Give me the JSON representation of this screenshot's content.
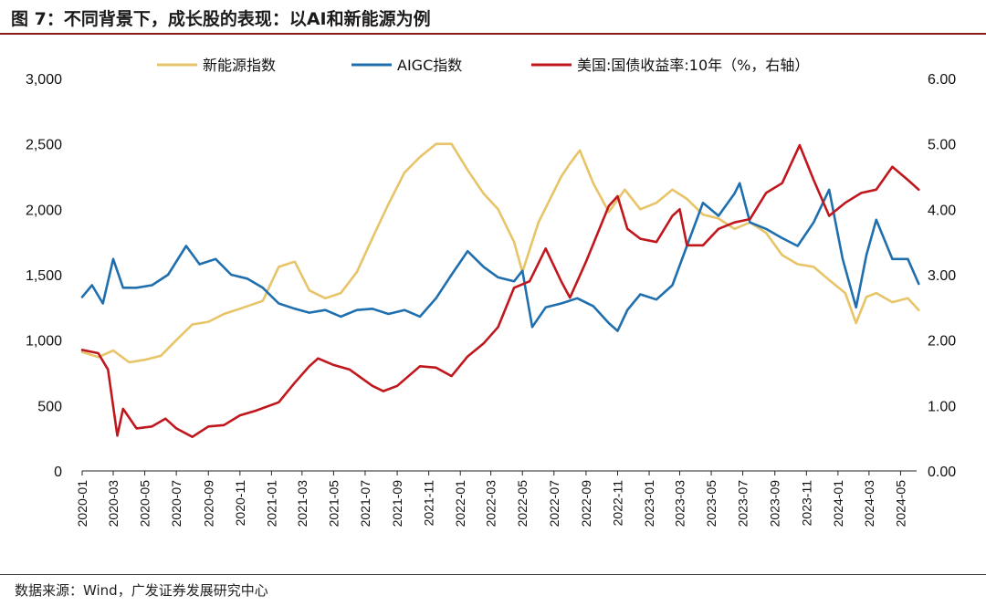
{
  "header": {
    "title": "图 7：不同背景下，成长股的表现：以AI和新能源为例"
  },
  "footer": {
    "source": "数据来源：Wind，广发证券发展研究中心"
  },
  "chart_data": {
    "type": "line",
    "x_labels": [
      "2020-01",
      "2020-03",
      "2020-05",
      "2020-07",
      "2020-09",
      "2020-11",
      "2021-01",
      "2021-03",
      "2021-05",
      "2021-07",
      "2021-09",
      "2021-11",
      "2022-01",
      "2022-03",
      "2022-05",
      "2022-07",
      "2022-09",
      "2022-11",
      "2023-01",
      "2023-03",
      "2023-05",
      "2023-07",
      "2023-09",
      "2023-11",
      "2024-01",
      "2024-03",
      "2024-05"
    ],
    "x_range": [
      "2020-01",
      "2024-06"
    ],
    "y_left": {
      "min": 0,
      "max": 3000,
      "ticks": [
        "0",
        "500",
        "1,000",
        "1,500",
        "2,000",
        "2,500",
        "3,000"
      ]
    },
    "y_right": {
      "min": 0,
      "max": 6,
      "ticks": [
        "0.00",
        "1.00",
        "2.00",
        "3.00",
        "4.00",
        "5.00",
        "6.00"
      ]
    },
    "legend_position": "top",
    "grid": false,
    "series": [
      {
        "name": "新能源指数",
        "axis": "left",
        "color": "#E8C468",
        "points": [
          [
            "2020-01-01",
            910
          ],
          [
            "2020-02-01",
            870
          ],
          [
            "2020-03-01",
            920
          ],
          [
            "2020-04-01",
            830
          ],
          [
            "2020-05-01",
            850
          ],
          [
            "2020-06-01",
            880
          ],
          [
            "2020-07-01",
            1000
          ],
          [
            "2020-08-01",
            1120
          ],
          [
            "2020-09-01",
            1140
          ],
          [
            "2020-10-01",
            1200
          ],
          [
            "2020-11-01",
            1240
          ],
          [
            "2020-12-15",
            1300
          ],
          [
            "2021-01-15",
            1560
          ],
          [
            "2021-02-15",
            1600
          ],
          [
            "2021-03-15",
            1380
          ],
          [
            "2021-04-15",
            1320
          ],
          [
            "2021-05-15",
            1360
          ],
          [
            "2021-06-15",
            1520
          ],
          [
            "2021-07-15",
            1780
          ],
          [
            "2021-08-15",
            2040
          ],
          [
            "2021-09-15",
            2280
          ],
          [
            "2021-10-15",
            2400
          ],
          [
            "2021-11-15",
            2500
          ],
          [
            "2021-12-15",
            2500
          ],
          [
            "2022-01-15",
            2300
          ],
          [
            "2022-02-15",
            2120
          ],
          [
            "2022-03-15",
            2000
          ],
          [
            "2022-04-15",
            1750
          ],
          [
            "2022-05-01",
            1520
          ],
          [
            "2022-06-01",
            1900
          ],
          [
            "2022-07-15",
            2250
          ],
          [
            "2022-08-01",
            2350
          ],
          [
            "2022-08-20",
            2450
          ],
          [
            "2022-09-15",
            2200
          ],
          [
            "2022-10-15",
            1980
          ],
          [
            "2022-11-15",
            2150
          ],
          [
            "2022-12-15",
            2000
          ],
          [
            "2023-01-15",
            2050
          ],
          [
            "2023-02-15",
            2150
          ],
          [
            "2023-03-15",
            2080
          ],
          [
            "2023-04-15",
            1960
          ],
          [
            "2023-05-15",
            1930
          ],
          [
            "2023-06-15",
            1850
          ],
          [
            "2023-07-15",
            1900
          ],
          [
            "2023-08-15",
            1820
          ],
          [
            "2023-09-15",
            1650
          ],
          [
            "2023-10-15",
            1580
          ],
          [
            "2023-11-15",
            1560
          ],
          [
            "2023-12-15",
            1460
          ],
          [
            "2024-01-15",
            1360
          ],
          [
            "2024-02-05",
            1130
          ],
          [
            "2024-02-25",
            1330
          ],
          [
            "2024-03-15",
            1360
          ],
          [
            "2024-04-15",
            1290
          ],
          [
            "2024-05-15",
            1320
          ],
          [
            "2024-06-05",
            1230
          ]
        ]
      },
      {
        "name": "AIGC指数",
        "axis": "left",
        "color": "#1F6FAE",
        "points": [
          [
            "2020-01-01",
            1330
          ],
          [
            "2020-01-20",
            1420
          ],
          [
            "2020-02-10",
            1280
          ],
          [
            "2020-03-01",
            1620
          ],
          [
            "2020-03-20",
            1400
          ],
          [
            "2020-04-15",
            1400
          ],
          [
            "2020-05-15",
            1420
          ],
          [
            "2020-06-15",
            1500
          ],
          [
            "2020-07-20",
            1720
          ],
          [
            "2020-08-15",
            1580
          ],
          [
            "2020-09-15",
            1620
          ],
          [
            "2020-10-15",
            1500
          ],
          [
            "2020-11-15",
            1470
          ],
          [
            "2020-12-15",
            1400
          ],
          [
            "2021-01-15",
            1280
          ],
          [
            "2021-02-15",
            1240
          ],
          [
            "2021-03-15",
            1210
          ],
          [
            "2021-04-15",
            1230
          ],
          [
            "2021-05-15",
            1180
          ],
          [
            "2021-06-15",
            1230
          ],
          [
            "2021-07-15",
            1240
          ],
          [
            "2021-08-15",
            1200
          ],
          [
            "2021-09-15",
            1230
          ],
          [
            "2021-10-15",
            1180
          ],
          [
            "2021-11-15",
            1320
          ],
          [
            "2021-12-15",
            1500
          ],
          [
            "2022-01-15",
            1680
          ],
          [
            "2022-02-15",
            1560
          ],
          [
            "2022-03-15",
            1480
          ],
          [
            "2022-04-15",
            1450
          ],
          [
            "2022-05-01",
            1530
          ],
          [
            "2022-05-20",
            1100
          ],
          [
            "2022-06-15",
            1250
          ],
          [
            "2022-07-15",
            1280
          ],
          [
            "2022-08-15",
            1320
          ],
          [
            "2022-09-15",
            1260
          ],
          [
            "2022-10-15",
            1130
          ],
          [
            "2022-11-01",
            1070
          ],
          [
            "2022-11-20",
            1230
          ],
          [
            "2022-12-15",
            1350
          ],
          [
            "2023-01-15",
            1310
          ],
          [
            "2023-02-15",
            1420
          ],
          [
            "2023-03-15",
            1720
          ],
          [
            "2023-04-15",
            2050
          ],
          [
            "2023-05-15",
            1950
          ],
          [
            "2023-06-15",
            2120
          ],
          [
            "2023-06-25",
            2200
          ],
          [
            "2023-07-15",
            1900
          ],
          [
            "2023-08-15",
            1850
          ],
          [
            "2023-09-15",
            1780
          ],
          [
            "2023-10-15",
            1720
          ],
          [
            "2023-11-15",
            1900
          ],
          [
            "2023-12-15",
            2150
          ],
          [
            "2024-01-10",
            1620
          ],
          [
            "2024-02-05",
            1250
          ],
          [
            "2024-02-25",
            1650
          ],
          [
            "2024-03-15",
            1920
          ],
          [
            "2024-04-15",
            1620
          ],
          [
            "2024-05-15",
            1620
          ],
          [
            "2024-06-05",
            1430
          ]
        ]
      },
      {
        "name": "美国:国债收益率:10年（%，右轴）",
        "axis": "right",
        "color": "#C0171D",
        "points": [
          [
            "2020-01-01",
            1.85
          ],
          [
            "2020-02-01",
            1.8
          ],
          [
            "2020-02-20",
            1.55
          ],
          [
            "2020-03-09",
            0.54
          ],
          [
            "2020-03-20",
            0.95
          ],
          [
            "2020-04-15",
            0.65
          ],
          [
            "2020-05-15",
            0.68
          ],
          [
            "2020-06-10",
            0.8
          ],
          [
            "2020-07-01",
            0.65
          ],
          [
            "2020-08-01",
            0.52
          ],
          [
            "2020-09-01",
            0.68
          ],
          [
            "2020-10-01",
            0.7
          ],
          [
            "2020-11-01",
            0.85
          ],
          [
            "2020-12-01",
            0.92
          ],
          [
            "2021-01-15",
            1.05
          ],
          [
            "2021-02-15",
            1.35
          ],
          [
            "2021-03-15",
            1.6
          ],
          [
            "2021-04-01",
            1.72
          ],
          [
            "2021-05-01",
            1.62
          ],
          [
            "2021-06-01",
            1.55
          ],
          [
            "2021-07-15",
            1.3
          ],
          [
            "2021-08-05",
            1.22
          ],
          [
            "2021-09-01",
            1.3
          ],
          [
            "2021-10-15",
            1.6
          ],
          [
            "2021-11-15",
            1.58
          ],
          [
            "2021-12-15",
            1.45
          ],
          [
            "2022-01-15",
            1.75
          ],
          [
            "2022-02-15",
            1.95
          ],
          [
            "2022-03-15",
            2.2
          ],
          [
            "2022-04-15",
            2.8
          ],
          [
            "2022-05-15",
            2.9
          ],
          [
            "2022-06-15",
            3.4
          ],
          [
            "2022-07-15",
            2.9
          ],
          [
            "2022-08-01",
            2.65
          ],
          [
            "2022-09-01",
            3.2
          ],
          [
            "2022-10-15",
            4.05
          ],
          [
            "2022-11-01",
            4.2
          ],
          [
            "2022-11-20",
            3.7
          ],
          [
            "2022-12-15",
            3.55
          ],
          [
            "2023-01-15",
            3.5
          ],
          [
            "2023-02-15",
            3.9
          ],
          [
            "2023-03-01",
            4.0
          ],
          [
            "2023-03-15",
            3.45
          ],
          [
            "2023-04-15",
            3.45
          ],
          [
            "2023-05-15",
            3.7
          ],
          [
            "2023-06-15",
            3.8
          ],
          [
            "2023-07-15",
            3.85
          ],
          [
            "2023-08-15",
            4.25
          ],
          [
            "2023-09-15",
            4.4
          ],
          [
            "2023-10-19",
            4.98
          ],
          [
            "2023-11-15",
            4.45
          ],
          [
            "2023-12-15",
            3.9
          ],
          [
            "2024-01-15",
            4.1
          ],
          [
            "2024-02-15",
            4.25
          ],
          [
            "2024-03-15",
            4.3
          ],
          [
            "2024-04-15",
            4.65
          ],
          [
            "2024-05-15",
            4.45
          ],
          [
            "2024-06-05",
            4.3
          ]
        ]
      }
    ]
  }
}
